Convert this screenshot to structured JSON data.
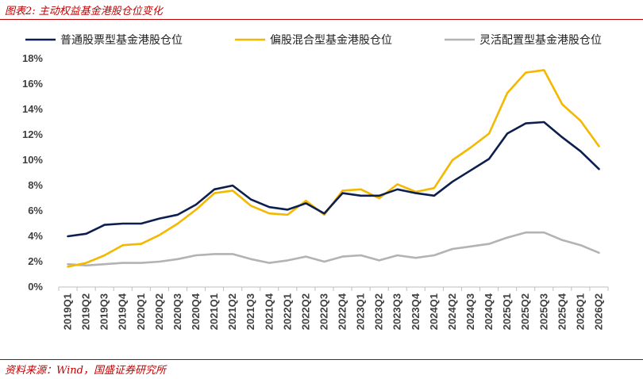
{
  "figure": {
    "title": "图表2: 主动权益基金港股仓位变化",
    "source": "资料来源：Wind，国盛证券研究所"
  },
  "chart_data": {
    "type": "line",
    "categories": [
      "2019Q1",
      "2019Q2",
      "2019Q3",
      "2019Q4",
      "2020Q1",
      "2020Q2",
      "2020Q3",
      "2020Q4",
      "2021Q1",
      "2021Q2",
      "2021Q3",
      "2021Q4",
      "2022Q1",
      "2022Q2",
      "2022Q3",
      "2022Q4",
      "2023Q1",
      "2023Q2",
      "2023Q3",
      "2023Q4",
      "2024Q1",
      "2024Q2",
      "2024Q3",
      "2024Q4",
      "2025Q1",
      "2025Q2",
      "2025Q3",
      "2025Q4",
      "2026Q1",
      "2026Q2"
    ],
    "ylim": [
      0,
      18
    ],
    "yticks": [
      "0%",
      "2%",
      "4%",
      "6%",
      "8%",
      "10%",
      "12%",
      "14%",
      "16%",
      "18%"
    ],
    "legend_position": "top",
    "grid": false,
    "series": [
      {
        "name": "普通股票型基金港股仓位",
        "color": "#0d1f4f",
        "values": [
          4.0,
          4.2,
          4.9,
          5.0,
          5.0,
          5.4,
          5.7,
          6.5,
          7.7,
          8.0,
          6.9,
          6.3,
          6.1,
          6.6,
          5.8,
          7.4,
          7.2,
          7.2,
          7.7,
          7.4,
          7.2,
          8.3,
          9.2,
          10.1,
          12.1,
          12.9,
          13.0,
          11.8,
          10.7,
          9.3
        ]
      },
      {
        "name": "偏股混合型基金港股仓位",
        "color": "#f5b800",
        "values": [
          1.6,
          1.9,
          2.5,
          3.3,
          3.4,
          4.1,
          5.0,
          6.1,
          7.4,
          7.6,
          6.4,
          5.8,
          5.7,
          6.8,
          5.7,
          7.6,
          7.7,
          7.0,
          8.1,
          7.5,
          7.8,
          10.0,
          11.0,
          12.1,
          15.3,
          16.9,
          17.1,
          14.4,
          13.1,
          11.1
        ]
      },
      {
        "name": "灵活配置型基金港股仓位",
        "color": "#b3b3b3",
        "values": [
          1.8,
          1.7,
          1.8,
          1.9,
          1.9,
          2.0,
          2.2,
          2.5,
          2.6,
          2.6,
          2.2,
          1.9,
          2.1,
          2.4,
          2.0,
          2.4,
          2.5,
          2.1,
          2.5,
          2.3,
          2.5,
          3.0,
          3.2,
          3.4,
          3.9,
          4.3,
          4.3,
          3.7,
          3.3,
          2.7
        ]
      }
    ]
  }
}
